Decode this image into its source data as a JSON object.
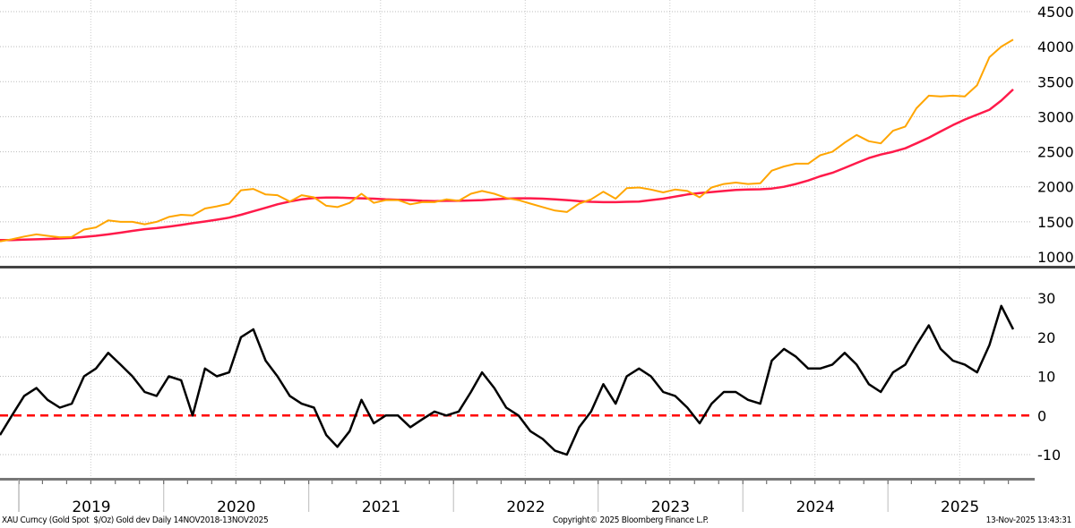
{
  "chart_data": [
    {
      "type": "line",
      "panel": "top",
      "ylim": [
        1000,
        4500
      ],
      "yticks": [
        1000,
        1500,
        2000,
        2500,
        3000,
        3500,
        4000,
        4500
      ],
      "grid": true,
      "x": [
        "2018-11",
        "2018-12",
        "2019-01",
        "2019-02",
        "2019-03",
        "2019-04",
        "2019-05",
        "2019-06",
        "2019-07",
        "2019-08",
        "2019-09",
        "2019-10",
        "2019-11",
        "2019-12",
        "2020-01",
        "2020-02",
        "2020-03",
        "2020-04",
        "2020-05",
        "2020-06",
        "2020-07",
        "2020-08",
        "2020-09",
        "2020-10",
        "2020-11",
        "2020-12",
        "2021-01",
        "2021-02",
        "2021-03",
        "2021-04",
        "2021-05",
        "2021-06",
        "2021-07",
        "2021-08",
        "2021-09",
        "2021-10",
        "2021-11",
        "2021-12",
        "2022-01",
        "2022-02",
        "2022-03",
        "2022-04",
        "2022-05",
        "2022-06",
        "2022-07",
        "2022-08",
        "2022-09",
        "2022-10",
        "2022-11",
        "2022-12",
        "2023-01",
        "2023-02",
        "2023-03",
        "2023-04",
        "2023-05",
        "2023-06",
        "2023-07",
        "2023-08",
        "2023-09",
        "2023-10",
        "2023-11",
        "2023-12",
        "2024-01",
        "2024-02",
        "2024-03",
        "2024-04",
        "2024-05",
        "2024-06",
        "2024-07",
        "2024-08",
        "2024-09",
        "2024-10",
        "2024-11",
        "2024-12",
        "2025-01",
        "2025-02",
        "2025-03",
        "2025-04",
        "2025-05",
        "2025-06",
        "2025-07",
        "2025-08",
        "2025-09",
        "2025-10",
        "2025-11"
      ],
      "series": [
        {
          "color": "#FFA500",
          "values": [
            1220,
            1250,
            1290,
            1320,
            1300,
            1280,
            1285,
            1390,
            1420,
            1520,
            1500,
            1500,
            1465,
            1500,
            1570,
            1600,
            1590,
            1690,
            1720,
            1760,
            1950,
            1970,
            1890,
            1880,
            1790,
            1880,
            1850,
            1730,
            1710,
            1770,
            1900,
            1770,
            1810,
            1810,
            1750,
            1780,
            1780,
            1820,
            1800,
            1900,
            1940,
            1900,
            1840,
            1810,
            1760,
            1710,
            1660,
            1640,
            1760,
            1820,
            1930,
            1830,
            1980,
            1990,
            1960,
            1920,
            1960,
            1940,
            1850,
            1990,
            2040,
            2060,
            2040,
            2050,
            2230,
            2290,
            2330,
            2330,
            2450,
            2500,
            2630,
            2740,
            2650,
            2620,
            2800,
            2860,
            3120,
            3300,
            3290,
            3300,
            3290,
            3450,
            3850,
            4000,
            4100
          ]
        },
        {
          "color": "#FF1A4A",
          "values": [
            1240,
            1240,
            1245,
            1250,
            1255,
            1262,
            1270,
            1285,
            1300,
            1320,
            1345,
            1370,
            1395,
            1410,
            1430,
            1455,
            1480,
            1505,
            1530,
            1560,
            1600,
            1650,
            1700,
            1750,
            1790,
            1820,
            1840,
            1845,
            1845,
            1840,
            1835,
            1830,
            1820,
            1815,
            1810,
            1800,
            1795,
            1800,
            1800,
            1805,
            1810,
            1820,
            1830,
            1835,
            1835,
            1830,
            1820,
            1810,
            1795,
            1785,
            1780,
            1780,
            1785,
            1790,
            1810,
            1830,
            1860,
            1890,
            1910,
            1925,
            1940,
            1955,
            1960,
            1965,
            1975,
            2000,
            2040,
            2090,
            2150,
            2200,
            2270,
            2340,
            2410,
            2460,
            2500,
            2550,
            2620,
            2700,
            2790,
            2880,
            2960,
            3030,
            3100,
            3230,
            3390
          ]
        }
      ]
    },
    {
      "type": "line",
      "panel": "bottom",
      "ylim": [
        -15,
        35
      ],
      "yticks": [
        -10,
        0,
        10,
        20,
        30
      ],
      "grid": true,
      "reference_line": {
        "value": 0,
        "color": "#FF0000",
        "style": "dashed"
      },
      "series": [
        {
          "color": "#000000",
          "values": [
            -5,
            0,
            5,
            7,
            4,
            2,
            3,
            10,
            12,
            16,
            13,
            10,
            6,
            5,
            10,
            9,
            0,
            12,
            10,
            11,
            20,
            22,
            14,
            10,
            5,
            3,
            2,
            -5,
            -8,
            -4,
            4,
            -2,
            0,
            0,
            -3,
            -1,
            1,
            0,
            1,
            6,
            11,
            7,
            2,
            0,
            -4,
            -6,
            -9,
            -10,
            -3,
            1,
            8,
            3,
            10,
            12,
            10,
            6,
            5,
            2,
            -2,
            3,
            6,
            6,
            4,
            3,
            14,
            17,
            15,
            12,
            12,
            13,
            16,
            13,
            8,
            6,
            11,
            13,
            18,
            23,
            17,
            14,
            13,
            11,
            18,
            28,
            22
          ]
        }
      ]
    }
  ],
  "x_axis": {
    "labels": [
      "2019",
      "2020",
      "2021",
      "2022",
      "2023",
      "2024",
      "2025"
    ]
  },
  "footer": {
    "left": "XAU Curncy (Gold Spot  $/Oz) Gold dev Daily 14NOV2018-13NOV2025",
    "center": "Copyright© 2025 Bloomberg Finance L.P.",
    "right": "13-Nov-2025 13:43:31"
  }
}
